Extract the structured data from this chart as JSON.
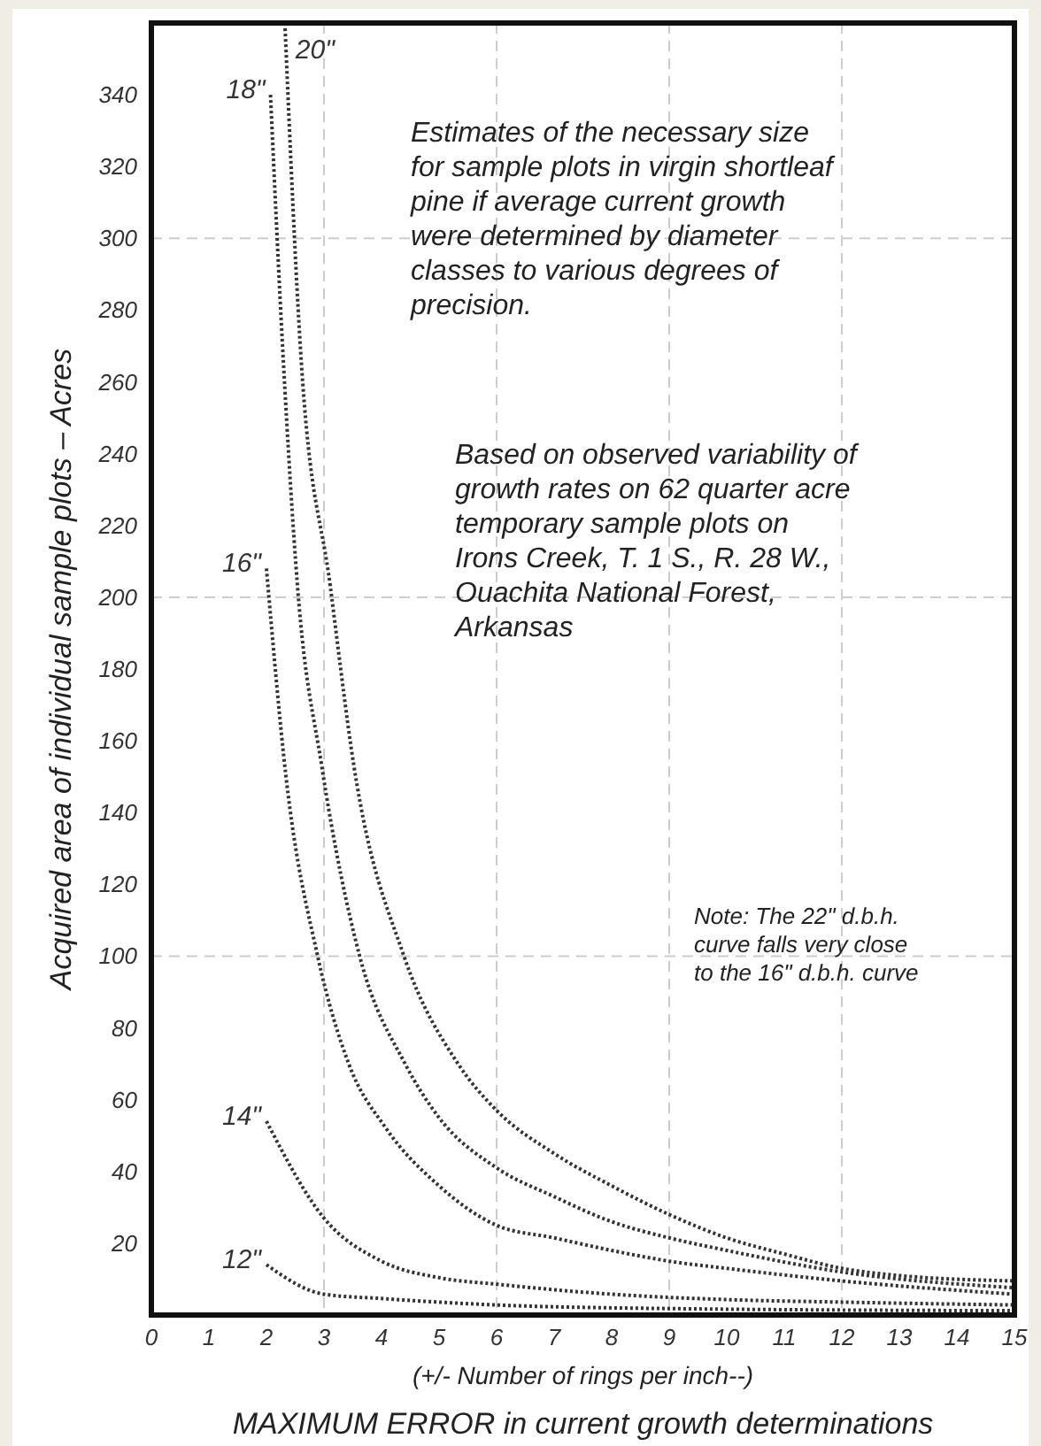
{
  "chart_data": {
    "type": "line",
    "xlabel": "(+/- Number of rings per inch--)\nMAXIMUM ERROR in current growth determinations",
    "ylabel": "Acquired area of individual sample plots – Acres",
    "xlim": [
      0,
      15
    ],
    "ylim": [
      0,
      360
    ],
    "xticks": [
      0,
      1,
      2,
      3,
      4,
      5,
      6,
      7,
      8,
      9,
      10,
      11,
      12,
      13,
      14,
      15
    ],
    "yticks": [
      20,
      40,
      60,
      80,
      100,
      120,
      140,
      160,
      180,
      200,
      220,
      240,
      260,
      280,
      300,
      320,
      340
    ],
    "line_style": "dotted",
    "marker": "none",
    "ref_lines": [
      {
        "axis": "x",
        "value": 3,
        "color": "#cccccc",
        "line_style": "dashed"
      },
      {
        "axis": "x",
        "value": 6,
        "color": "#cccccc",
        "line_style": "dashed"
      },
      {
        "axis": "x",
        "value": 9,
        "color": "#cccccc",
        "line_style": "dashed"
      },
      {
        "axis": "x",
        "value": 12,
        "color": "#cccccc",
        "line_style": "dashed"
      },
      {
        "axis": "y",
        "value": 100,
        "color": "#cccccc",
        "line_style": "dashed"
      },
      {
        "axis": "y",
        "value": 200,
        "color": "#cccccc",
        "line_style": "dashed"
      },
      {
        "axis": "y",
        "value": 300,
        "color": "#cccccc",
        "line_style": "dashed"
      }
    ],
    "series": [
      {
        "name": "20\"",
        "color": "#333333",
        "x": [
          2.32,
          2.6,
          3.11,
          3.52,
          4.39,
          5.33,
          6,
          7,
          8,
          9,
          10,
          11,
          12,
          13,
          15
        ],
        "values": [
          360,
          267,
          203,
          153,
          100,
          70,
          57,
          45,
          36,
          28,
          21.5,
          17,
          13,
          11,
          9.5
        ]
      },
      {
        "name": "18\"",
        "color": "#333333",
        "x": [
          2.07,
          2.29,
          2.54,
          2.96,
          3.62,
          4.41,
          5,
          6,
          7,
          8,
          9,
          10,
          12,
          15
        ],
        "values": [
          340,
          267,
          203,
          153,
          100,
          70,
          55,
          41,
          33,
          26,
          21.5,
          18,
          12,
          7.6
        ]
      },
      {
        "name": "16\"",
        "color": "#333333",
        "x": [
          2,
          2.34,
          2.89,
          3.43,
          4.08,
          5,
          6,
          7,
          8,
          9,
          10,
          12,
          15
        ],
        "values": [
          208,
          150,
          100,
          70,
          52,
          36,
          25,
          21.5,
          18,
          15,
          13,
          9.5,
          5.8
        ]
      },
      {
        "name": "14\"",
        "color": "#333333",
        "x": [
          2,
          3,
          4,
          5,
          6,
          8,
          10,
          12,
          15
        ],
        "values": [
          54,
          27,
          15,
          10.4,
          8.6,
          5.8,
          4.3,
          3.6,
          2.8
        ]
      },
      {
        "name": "12\"",
        "color": "#333333",
        "x": [
          2,
          3,
          4,
          6,
          9,
          15
        ],
        "values": [
          14,
          5.8,
          4.6,
          2.8,
          1.8,
          1.2
        ]
      }
    ],
    "annotations": [
      "Estimates of the necessary size\nfor sample plots in virgin shortleaf\npine if average current growth\nwere determined by diameter\nclasses to various degrees of\nprecision.",
      "Based on observed variability of\ngrowth rates on 62 quarter acre\ntemporary sample plots on\nIrons Creek, T. 1 S., R. 28 W.,\nOuachita National Forest,\nArkansas",
      "Note: The 22\" d.b.h.\ncurve falls very close\nto the 16\" d.b.h. curve"
    ]
  }
}
